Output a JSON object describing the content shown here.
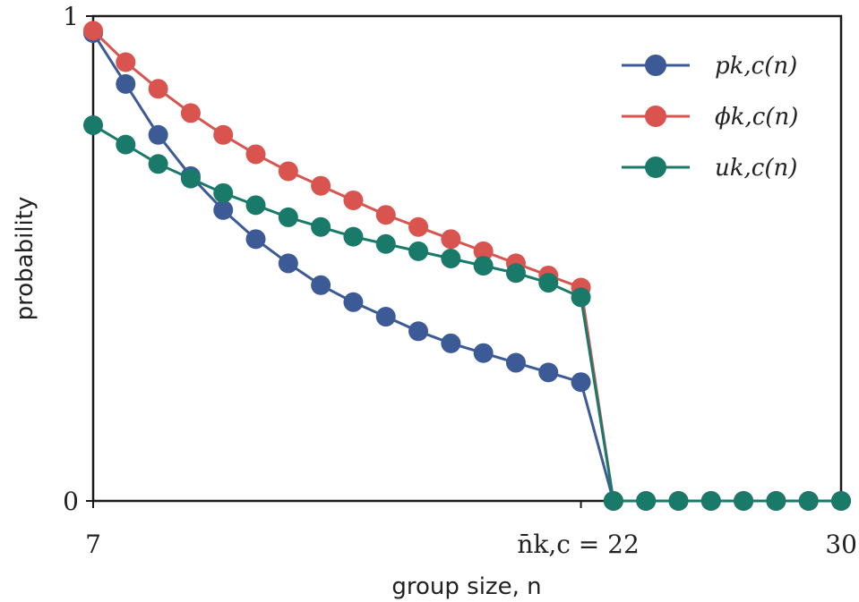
{
  "chart_data": {
    "type": "line",
    "xlabel": "group size, n",
    "ylabel": "probability",
    "xlim": [
      7,
      30
    ],
    "ylim": [
      0,
      1
    ],
    "x_ticks": [
      {
        "value": 7,
        "label": "7"
      },
      {
        "value": 22,
        "label": "n̄k,c = 22"
      },
      {
        "value": 30,
        "label": "30"
      }
    ],
    "y_ticks": [
      {
        "value": 0,
        "label": "0"
      },
      {
        "value": 1,
        "label": "1"
      }
    ],
    "x": [
      7,
      8,
      9,
      10,
      11,
      12,
      13,
      14,
      15,
      16,
      17,
      18,
      19,
      20,
      21,
      22,
      23,
      24,
      25,
      26,
      27,
      28,
      29,
      30
    ],
    "series": [
      {
        "name": "pk,c(n)",
        "color": "#3c5a96",
        "values": [
          0.965,
          0.86,
          0.755,
          0.67,
          0.6,
          0.54,
          0.49,
          0.445,
          0.41,
          0.38,
          0.35,
          0.325,
          0.305,
          0.285,
          0.265,
          0.245,
          0.0,
          0.0,
          0.0,
          0.0,
          0.0,
          0.0,
          0.0,
          0.0
        ]
      },
      {
        "name": "ϕk,c(n)",
        "color": "#d9534f",
        "values": [
          0.97,
          0.905,
          0.85,
          0.8,
          0.755,
          0.715,
          0.68,
          0.65,
          0.62,
          0.59,
          0.565,
          0.54,
          0.515,
          0.49,
          0.465,
          0.44,
          0.0,
          0.0,
          0.0,
          0.0,
          0.0,
          0.0,
          0.0,
          0.0
        ]
      },
      {
        "name": "uk,c(n)",
        "color": "#1a7a6a",
        "values": [
          0.775,
          0.735,
          0.695,
          0.665,
          0.635,
          0.61,
          0.585,
          0.565,
          0.545,
          0.53,
          0.515,
          0.5,
          0.485,
          0.47,
          0.45,
          0.42,
          0.0,
          0.0,
          0.0,
          0.0,
          0.0,
          0.0,
          0.0,
          0.0
        ]
      }
    ],
    "legend_position": "top-right",
    "grid": false
  }
}
